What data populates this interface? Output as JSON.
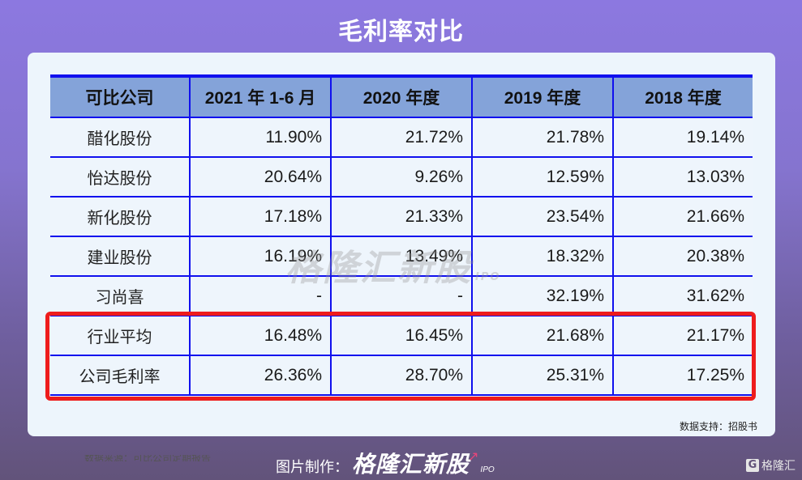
{
  "title": "毛利率对比",
  "table": {
    "headers": [
      "可比公司",
      "2021 年 1-6 月",
      "2020 年度",
      "2019 年度",
      "2018 年度"
    ],
    "rows": [
      {
        "company": "醋化股份",
        "values": [
          "11.90%",
          "21.72%",
          "21.78%",
          "19.14%"
        ]
      },
      {
        "company": "怡达股份",
        "values": [
          "20.64%",
          "9.26%",
          "12.59%",
          "13.03%"
        ]
      },
      {
        "company": "新化股份",
        "values": [
          "17.18%",
          "21.33%",
          "23.54%",
          "21.66%"
        ]
      },
      {
        "company": "建业股份",
        "values": [
          "16.19%",
          "13.49%",
          "18.32%",
          "20.38%"
        ]
      },
      {
        "company": "习尚喜",
        "values": [
          "-",
          "-",
          "32.19%",
          "31.62%"
        ]
      },
      {
        "company": "行业平均",
        "values": [
          "16.48%",
          "16.45%",
          "21.68%",
          "21.17%"
        ]
      },
      {
        "company": "公司毛利率",
        "values": [
          "26.36%",
          "28.70%",
          "25.31%",
          "17.25%"
        ]
      }
    ],
    "highlighted_rows": [
      "行业平均",
      "公司毛利率"
    ],
    "cut_note": "数据来源：可比公司定期报告"
  },
  "watermark": {
    "text": "格隆汇新股",
    "suffix": "IPO"
  },
  "source": "数据支持：招股书",
  "footer": {
    "label": "图片制作：",
    "brand": "格隆汇新股",
    "suffix": "IPO"
  },
  "corner_logo": {
    "icon": "G",
    "text": "格隆汇"
  },
  "colors": {
    "header_bg": "#84a3d9",
    "grid_line": "#1010ee",
    "highlight_border": "#ee1c1c",
    "card_bg": "#edf5fc",
    "bg_top": "#8c78e0",
    "bg_bottom": "#62537a"
  }
}
